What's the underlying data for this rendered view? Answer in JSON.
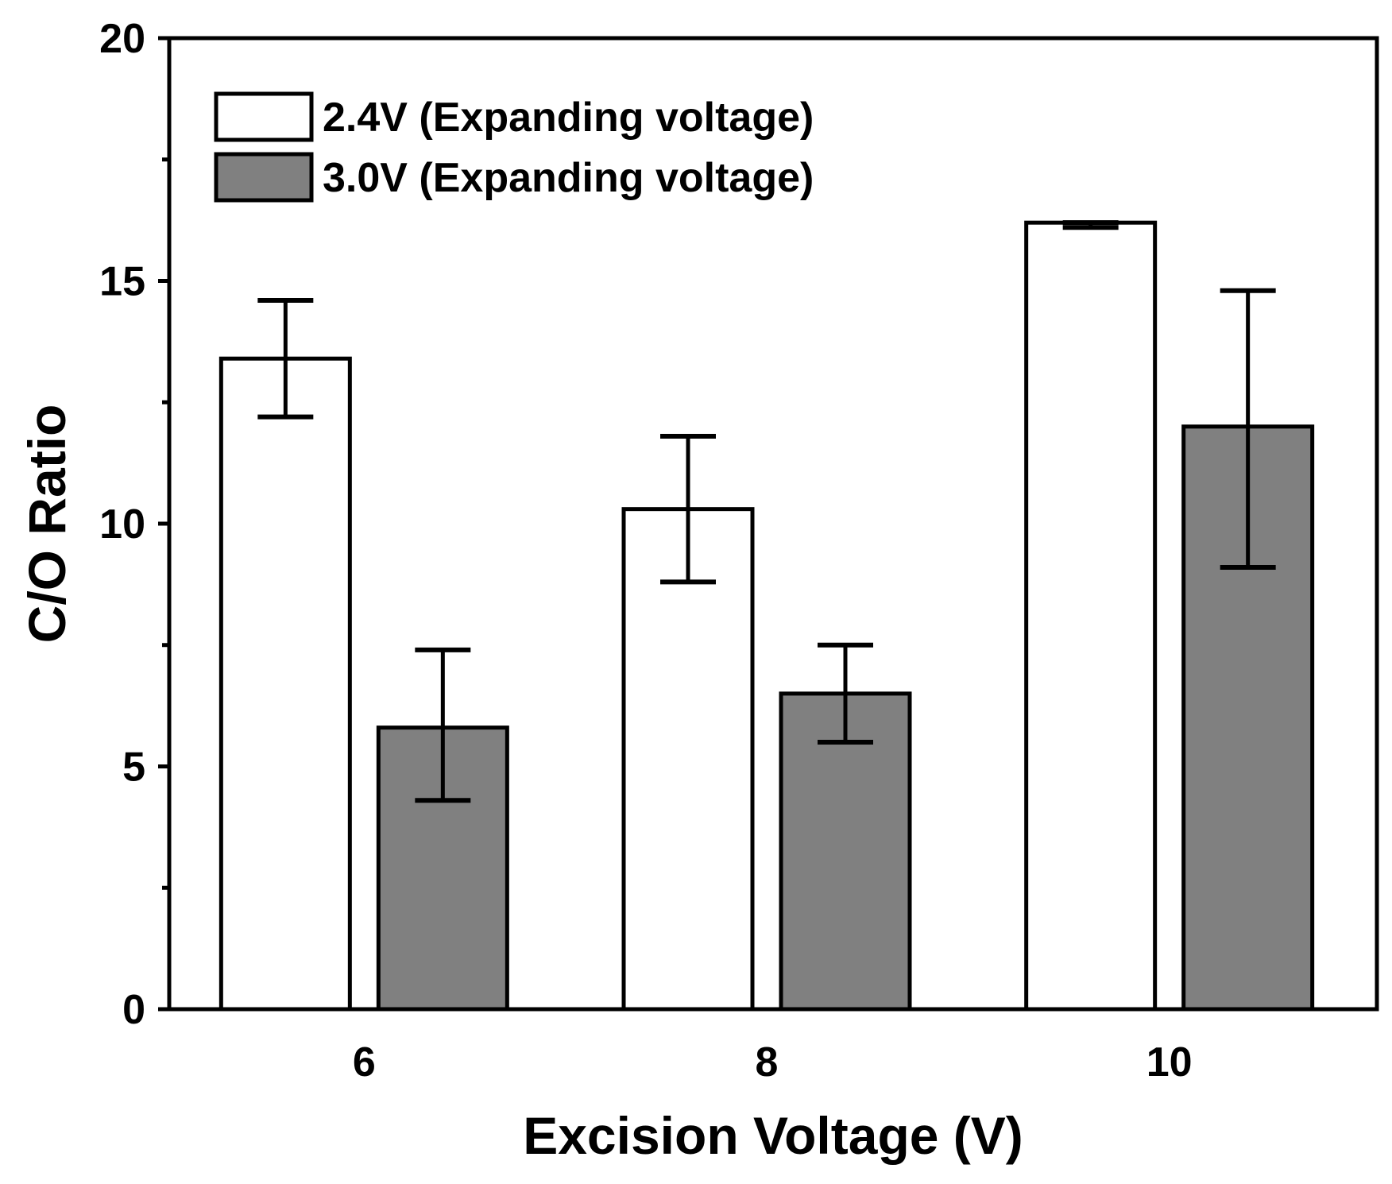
{
  "chart_data": {
    "type": "bar",
    "title": "",
    "xlabel": "Excision Voltage (V)",
    "ylabel": "C/O Ratio",
    "categories": [
      "6",
      "8",
      "10"
    ],
    "ylim": [
      0,
      20
    ],
    "yticks": [
      0,
      5,
      10,
      15,
      20
    ],
    "y_minor_ticks": [
      2.5,
      7.5,
      12.5,
      17.5
    ],
    "legend_position": "top-left",
    "series": [
      {
        "name": "2.4V (Expanding voltage)",
        "color": "#ffffff",
        "values": [
          13.4,
          10.3,
          16.2
        ],
        "error_low": [
          12.2,
          8.8,
          16.1
        ],
        "error_high": [
          14.6,
          11.8,
          16.2
        ]
      },
      {
        "name": "3.0V (Expanding voltage)",
        "color": "#808080",
        "values": [
          5.8,
          6.5,
          12.0
        ],
        "error_low": [
          4.3,
          5.5,
          9.1
        ],
        "error_high": [
          7.4,
          7.5,
          14.8
        ]
      }
    ]
  }
}
